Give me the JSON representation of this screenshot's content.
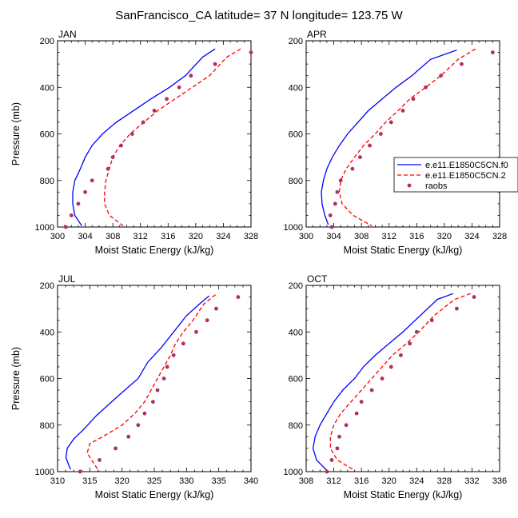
{
  "figure": {
    "title": "SanFrancisco_CA  latitude= 37 N longitude= 123.75 W"
  },
  "colors": {
    "model1": "#0000ff",
    "model2": "#ff0000",
    "obs": "#b03060"
  },
  "legend": {
    "entries": [
      "e.e11.E1850C5CN.f0",
      "e.e11.E1850C5CN.2",
      "raobs"
    ]
  },
  "chart_data": [
    {
      "type": "line",
      "panel_label": "JAN",
      "xlabel": "Moist Static Energy (kJ/kg)",
      "ylabel": "Pressure (mb)",
      "xlim": [
        300,
        328
      ],
      "ylim": [
        1000,
        200
      ],
      "y_inverted": true,
      "xticks": [
        300,
        304,
        308,
        312,
        316,
        320,
        324,
        328
      ],
      "yticks": [
        200,
        400,
        600,
        800,
        1000
      ],
      "legend_position": "none",
      "series": [
        {
          "name": "e.e11.E1850C5CN.f0",
          "style": "solid-line",
          "points": [
            [
              322.8,
              235
            ],
            [
              321,
              270
            ],
            [
              318.5,
              350
            ],
            [
              316.2,
              400
            ],
            [
              313.5,
              450
            ],
            [
              311,
              500
            ],
            [
              308.5,
              550
            ],
            [
              306.5,
              600
            ],
            [
              305,
              650
            ],
            [
              304,
              700
            ],
            [
              303.3,
              750
            ],
            [
              302.5,
              800
            ],
            [
              302.2,
              850
            ],
            [
              302.2,
              900
            ],
            [
              302.5,
              950
            ],
            [
              303.5,
              995
            ]
          ]
        },
        {
          "name": "e.e11.E1850C5CN.2",
          "style": "dashed-line",
          "points": [
            [
              326.5,
              235
            ],
            [
              324.5,
              270
            ],
            [
              322,
              350
            ],
            [
              319.5,
              400
            ],
            [
              317,
              450
            ],
            [
              314.5,
              500
            ],
            [
              312.5,
              550
            ],
            [
              310.5,
              600
            ],
            [
              309,
              650
            ],
            [
              308,
              700
            ],
            [
              307.5,
              750
            ],
            [
              307,
              800
            ],
            [
              306.8,
              850
            ],
            [
              306.8,
              900
            ],
            [
              307.5,
              950
            ],
            [
              309.5,
              995
            ]
          ]
        },
        {
          "name": "raobs",
          "style": "markers",
          "points": [
            [
              328,
              250
            ],
            [
              322.8,
              300
            ],
            [
              319.3,
              350
            ],
            [
              317.6,
              400
            ],
            [
              315.8,
              450
            ],
            [
              314,
              500
            ],
            [
              312.4,
              550
            ],
            [
              310.8,
              600
            ],
            [
              309.2,
              650
            ],
            [
              308,
              700
            ],
            [
              307.3,
              750
            ],
            [
              305,
              800
            ],
            [
              304,
              850
            ],
            [
              303,
              900
            ],
            [
              302,
              950
            ],
            [
              301.2,
              1000
            ]
          ]
        }
      ]
    },
    {
      "type": "line",
      "panel_label": "APR",
      "xlabel": "Moist Static Energy (kJ/kg)",
      "ylabel": "",
      "xlim": [
        300,
        328
      ],
      "ylim": [
        1000,
        200
      ],
      "y_inverted": true,
      "xticks": [
        300,
        304,
        308,
        312,
        316,
        320,
        324,
        328
      ],
      "yticks": [
        200,
        400,
        600,
        800,
        1000
      ],
      "legend_position": "right-middle",
      "series": [
        {
          "name": "e.e11.E1850C5CN.f0",
          "style": "solid-line",
          "points": [
            [
              321.8,
              240
            ],
            [
              318,
              280
            ],
            [
              315.3,
              350
            ],
            [
              313,
              400
            ],
            [
              311,
              450
            ],
            [
              309,
              500
            ],
            [
              307.5,
              550
            ],
            [
              306,
              600
            ],
            [
              304.8,
              650
            ],
            [
              303.8,
              700
            ],
            [
              303,
              750
            ],
            [
              302.5,
              800
            ],
            [
              302.2,
              850
            ],
            [
              302.3,
              900
            ],
            [
              302.7,
              950
            ],
            [
              303.2,
              990
            ]
          ]
        },
        {
          "name": "e.e11.E1850C5CN.2",
          "style": "dashed-line",
          "points": [
            [
              324.5,
              235
            ],
            [
              322,
              280
            ],
            [
              319.5,
              350
            ],
            [
              317.3,
              400
            ],
            [
              315,
              450
            ],
            [
              313.3,
              500
            ],
            [
              311.5,
              550
            ],
            [
              310,
              600
            ],
            [
              308.3,
              650
            ],
            [
              307,
              700
            ],
            [
              305.8,
              750
            ],
            [
              305,
              800
            ],
            [
              304.8,
              850
            ],
            [
              305.2,
              900
            ],
            [
              306.8,
              950
            ],
            [
              309.5,
              995
            ]
          ]
        },
        {
          "name": "raobs",
          "style": "markers",
          "points": [
            [
              327,
              250
            ],
            [
              322.5,
              300
            ],
            [
              319.5,
              350
            ],
            [
              317.3,
              400
            ],
            [
              315.5,
              450
            ],
            [
              314,
              500
            ],
            [
              312.3,
              550
            ],
            [
              310.8,
              600
            ],
            [
              309.2,
              650
            ],
            [
              307.8,
              700
            ],
            [
              306.7,
              750
            ],
            [
              305,
              800
            ],
            [
              304.5,
              850
            ],
            [
              304.2,
              900
            ],
            [
              303.5,
              950
            ],
            [
              303.7,
              1000
            ]
          ]
        }
      ]
    },
    {
      "type": "line",
      "panel_label": "JUL",
      "xlabel": "Moist Static Energy (kJ/kg)",
      "ylabel": "Pressure (mb)",
      "xlim": [
        310,
        340
      ],
      "ylim": [
        1000,
        200
      ],
      "y_inverted": true,
      "xticks": [
        310,
        315,
        320,
        325,
        330,
        335,
        340
      ],
      "yticks": [
        200,
        400,
        600,
        800,
        1000
      ],
      "legend_position": "none",
      "series": [
        {
          "name": "e.e11.E1850C5CN.f0",
          "style": "solid-line",
          "points": [
            [
              333.5,
              245
            ],
            [
              332,
              280
            ],
            [
              330,
              330
            ],
            [
              328,
              400
            ],
            [
              326,
              470
            ],
            [
              324,
              530
            ],
            [
              322.5,
              600
            ],
            [
              320,
              660
            ],
            [
              318,
              710
            ],
            [
              316,
              760
            ],
            [
              314,
              820
            ],
            [
              312.5,
              860
            ],
            [
              311.5,
              900
            ],
            [
              311.3,
              940
            ],
            [
              312,
              990
            ]
          ]
        },
        {
          "name": "e.e11.E1850C5CN.2",
          "style": "dashed-line",
          "points": [
            [
              334.5,
              240
            ],
            [
              332.7,
              280
            ],
            [
              331,
              350
            ],
            [
              329.5,
              400
            ],
            [
              328.3,
              450
            ],
            [
              327.5,
              500
            ],
            [
              326.5,
              550
            ],
            [
              325.5,
              600
            ],
            [
              324.5,
              650
            ],
            [
              323.5,
              700
            ],
            [
              322,
              750
            ],
            [
              320,
              800
            ],
            [
              317,
              850
            ],
            [
              315,
              880
            ],
            [
              314.6,
              920
            ],
            [
              315.5,
              960
            ],
            [
              316.5,
              1000
            ]
          ]
        },
        {
          "name": "raobs",
          "style": "markers",
          "points": [
            [
              338,
              250
            ],
            [
              334.6,
              300
            ],
            [
              333.2,
              350
            ],
            [
              331.5,
              400
            ],
            [
              329.5,
              450
            ],
            [
              328,
              500
            ],
            [
              327,
              550
            ],
            [
              326.5,
              600
            ],
            [
              325.5,
              650
            ],
            [
              324.8,
              700
            ],
            [
              323.5,
              750
            ],
            [
              322.5,
              800
            ],
            [
              321,
              850
            ],
            [
              319,
              900
            ],
            [
              316.5,
              950
            ],
            [
              313.5,
              1000
            ]
          ]
        }
      ]
    },
    {
      "type": "line",
      "panel_label": "OCT",
      "xlabel": "Moist Static Energy (kJ/kg)",
      "ylabel": "",
      "xlim": [
        308,
        336
      ],
      "ylim": [
        1000,
        200
      ],
      "y_inverted": true,
      "xticks": [
        308,
        312,
        316,
        320,
        324,
        328,
        332,
        336
      ],
      "yticks": [
        200,
        400,
        600,
        800,
        1000
      ],
      "legend_position": "none",
      "series": [
        {
          "name": "e.e11.E1850C5CN.f0",
          "style": "solid-line",
          "points": [
            [
              329.3,
              235
            ],
            [
              327,
              260
            ],
            [
              324.5,
              330
            ],
            [
              322,
              400
            ],
            [
              320,
              450
            ],
            [
              318,
              500
            ],
            [
              316.3,
              550
            ],
            [
              315,
              600
            ],
            [
              313.3,
              650
            ],
            [
              312,
              700
            ],
            [
              311,
              750
            ],
            [
              310,
              800
            ],
            [
              309.3,
              850
            ],
            [
              309,
              900
            ],
            [
              309.5,
              950
            ],
            [
              311,
              995
            ]
          ]
        },
        {
          "name": "e.e11.E1850C5CN.2",
          "style": "dashed-line",
          "points": [
            [
              331.8,
              235
            ],
            [
              329.5,
              260
            ],
            [
              326.5,
              330
            ],
            [
              324.3,
              400
            ],
            [
              322.5,
              450
            ],
            [
              320.5,
              500
            ],
            [
              319,
              550
            ],
            [
              317.5,
              600
            ],
            [
              316,
              650
            ],
            [
              314.5,
              700
            ],
            [
              313,
              750
            ],
            [
              312,
              800
            ],
            [
              311.5,
              850
            ],
            [
              311.5,
              900
            ],
            [
              312.5,
              950
            ],
            [
              315,
              995
            ]
          ]
        },
        {
          "name": "raobs",
          "style": "markers",
          "points": [
            [
              332.3,
              250
            ],
            [
              329.8,
              300
            ],
            [
              326.2,
              350
            ],
            [
              324,
              400
            ],
            [
              323,
              450
            ],
            [
              321.7,
              500
            ],
            [
              320.3,
              550
            ],
            [
              319,
              600
            ],
            [
              317.5,
              650
            ],
            [
              316,
              700
            ],
            [
              315.3,
              750
            ],
            [
              313.8,
              800
            ],
            [
              312.8,
              850
            ],
            [
              312.5,
              900
            ],
            [
              311.7,
              950
            ],
            [
              311,
              1000
            ]
          ]
        }
      ]
    }
  ]
}
